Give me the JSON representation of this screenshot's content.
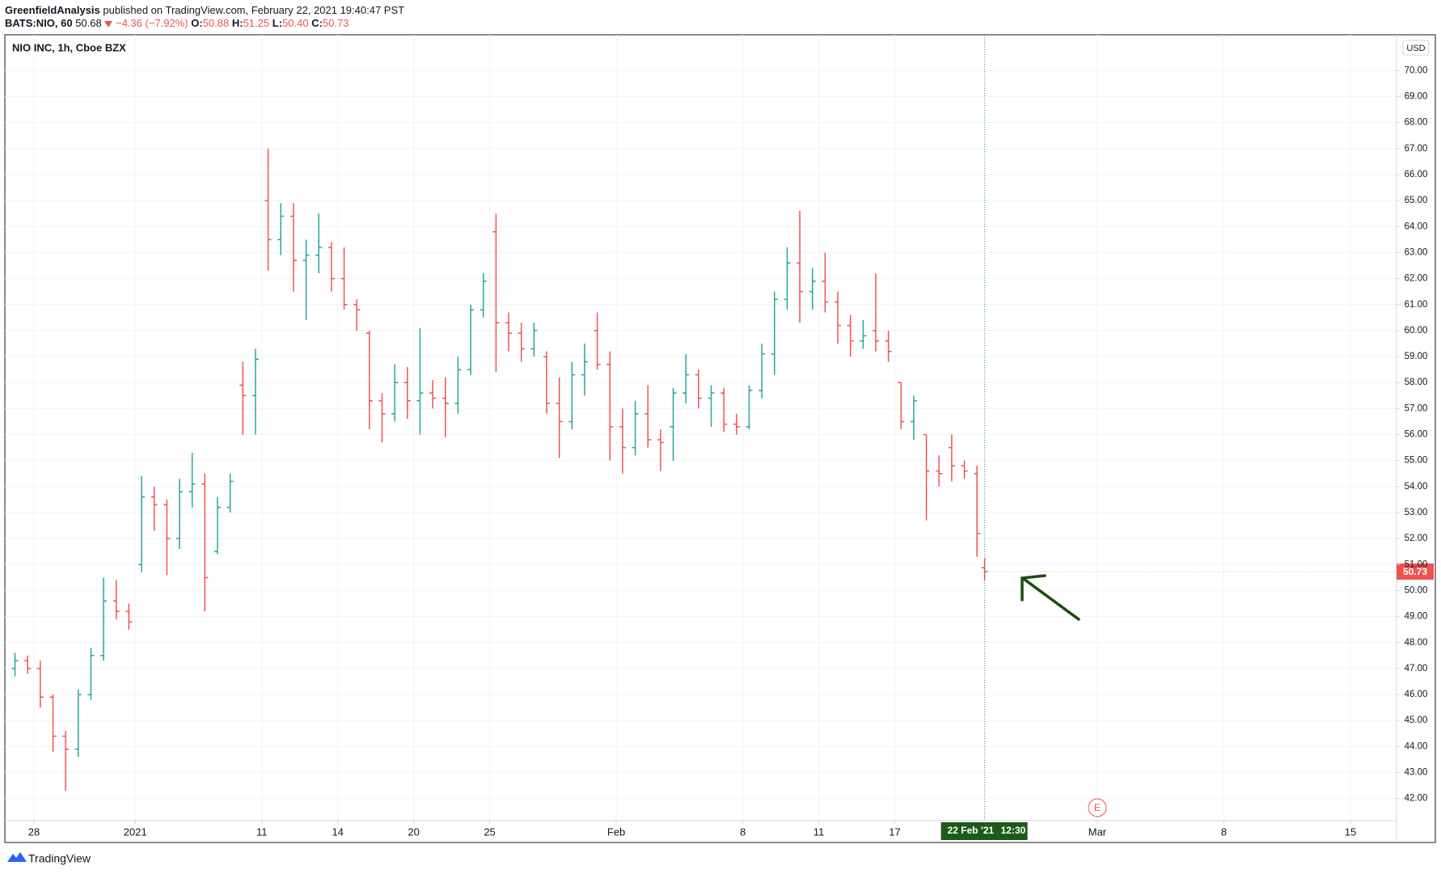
{
  "header": {
    "publisher": "GreenfieldAnalysis",
    "published": "published on TradingView.com, February 22, 2021 19:40:47 PST",
    "symbol": "BATS:NIO, 60",
    "last": "50.68",
    "change": "−4.36 (−7.92%)",
    "ohlc_labels": [
      "O:",
      "H:",
      "L:",
      "C:"
    ],
    "ohlc_values": [
      "50.88",
      "51.25",
      "50.40",
      "50.73"
    ],
    "currency": "USD",
    "crosshair_date": "22 Feb '21",
    "crosshair_time": "12:30",
    "earnings": "E",
    "footer": "TradingView"
  },
  "chart_data": {
    "type": "ohlc",
    "title": "NIO INC, 1h, Cboe BZX",
    "up_color": "#26a69a",
    "down_color": "#ef5350",
    "grid": true,
    "xlim": [
      -1.15,
      53.82
    ],
    "ylim": [
      41.15,
      71.38
    ],
    "xticks": [
      {
        "value": 0,
        "label": "28"
      },
      {
        "value": 4,
        "label": "2021"
      },
      {
        "value": 9,
        "label": "11"
      },
      {
        "value": 12,
        "label": "14"
      },
      {
        "value": 15,
        "label": "20"
      },
      {
        "value": 18,
        "label": "25"
      },
      {
        "value": 23,
        "label": "Feb"
      },
      {
        "value": 28,
        "label": "8"
      },
      {
        "value": 31,
        "label": "11"
      },
      {
        "value": 34,
        "label": "17"
      },
      {
        "value": 42,
        "label": "Mar"
      },
      {
        "value": 47,
        "label": "8"
      },
      {
        "value": 52,
        "label": "15"
      }
    ],
    "yticks": [
      {
        "value": 42,
        "label": "42.00"
      },
      {
        "value": 43,
        "label": "43.00"
      },
      {
        "value": 44,
        "label": "44.00"
      },
      {
        "value": 45,
        "label": "45.00"
      },
      {
        "value": 46,
        "label": "46.00"
      },
      {
        "value": 47,
        "label": "47.00"
      },
      {
        "value": 48,
        "label": "48.00"
      },
      {
        "value": 49,
        "label": "49.00"
      },
      {
        "value": 50,
        "label": "50.00"
      },
      {
        "value": 51,
        "label": "51.00"
      },
      {
        "value": 52,
        "label": "52.00"
      },
      {
        "value": 53,
        "label": "53.00"
      },
      {
        "value": 54,
        "label": "54.00"
      },
      {
        "value": 55,
        "label": "55.00"
      },
      {
        "value": 56,
        "label": "56.00"
      },
      {
        "value": 57,
        "label": "57.00"
      },
      {
        "value": 58,
        "label": "58.00"
      },
      {
        "value": 59,
        "label": "59.00"
      },
      {
        "value": 60,
        "label": "60.00"
      },
      {
        "value": 61,
        "label": "61.00"
      },
      {
        "value": 62,
        "label": "62.00"
      },
      {
        "value": 63,
        "label": "63.00"
      },
      {
        "value": 64,
        "label": "64.00"
      },
      {
        "value": 65,
        "label": "65.00"
      },
      {
        "value": 66,
        "label": "66.00"
      },
      {
        "value": 67,
        "label": "67.00"
      },
      {
        "value": 68,
        "label": "68.00"
      },
      {
        "value": 69,
        "label": "69.00"
      },
      {
        "value": 70,
        "label": "70.00"
      }
    ],
    "x": [
      -0.75,
      -0.25,
      0.25,
      0.75,
      1.25,
      1.75,
      2.25,
      2.75,
      3.25,
      3.75,
      4.25,
      4.75,
      5.25,
      5.75,
      6.25,
      6.75,
      7.25,
      7.75,
      8.25,
      8.75,
      9.25,
      9.75,
      10.25,
      10.75,
      11.25,
      11.75,
      12.25,
      12.75,
      13.25,
      13.75,
      14.25,
      14.75,
      15.25,
      15.75,
      16.25,
      16.75,
      17.25,
      17.75,
      18.25,
      18.75,
      19.25,
      19.75,
      20.25,
      20.75,
      21.25,
      21.75,
      22.25,
      22.75,
      23.25,
      23.75,
      24.25,
      24.75,
      25.25,
      25.75,
      26.25,
      26.75,
      27.25,
      27.75,
      28.25,
      28.75,
      29.25,
      29.75,
      30.25,
      30.75,
      31.25,
      31.75,
      32.25,
      32.75,
      33.25,
      33.75,
      34.25,
      34.75,
      35.25,
      35.75,
      36.25,
      36.75,
      37.25,
      37.55
    ],
    "open": [
      47.0,
      47.3,
      47.0,
      45.9,
      44.4,
      43.9,
      46.0,
      47.5,
      49.6,
      49.2,
      51.0,
      53.6,
      53.3,
      52.0,
      53.8,
      54.1,
      51.5,
      53.2,
      57.9,
      57.5,
      65.0,
      63.5,
      64.4,
      62.7,
      62.9,
      63.2,
      62.0,
      61.0,
      59.9,
      57.3,
      56.8,
      58.0,
      57.3,
      57.6,
      57.4,
      57.2,
      58.5,
      60.8,
      63.8,
      60.3,
      59.9,
      59.3,
      59.0,
      57.2,
      56.5,
      58.3,
      60.0,
      58.7,
      56.3,
      55.5,
      56.8,
      55.8,
      56.3,
      57.6,
      58.3,
      57.4,
      57.6,
      56.4,
      56.3,
      57.7,
      59.1,
      61.2,
      62.6,
      61.5,
      61.9,
      61.1,
      60.2,
      59.6,
      60.0,
      59.6,
      58.0,
      56.5,
      56.0,
      54.6,
      55.5,
      54.8,
      54.5,
      50.88
    ],
    "high": [
      47.6,
      47.5,
      47.3,
      46.0,
      44.6,
      46.2,
      47.8,
      50.5,
      50.4,
      49.5,
      54.4,
      54.0,
      53.5,
      54.3,
      55.3,
      54.5,
      53.6,
      54.5,
      58.8,
      59.3,
      67.0,
      64.9,
      64.9,
      63.5,
      64.5,
      63.4,
      63.2,
      61.2,
      60.0,
      57.6,
      58.7,
      58.6,
      60.1,
      58.1,
      58.2,
      59.0,
      61.0,
      62.2,
      64.5,
      60.7,
      60.3,
      60.3,
      59.2,
      58.2,
      58.8,
      59.5,
      60.7,
      59.2,
      57.0,
      57.3,
      57.9,
      56.2,
      57.8,
      59.1,
      58.5,
      57.9,
      57.8,
      56.8,
      57.9,
      59.5,
      61.5,
      63.2,
      64.6,
      62.4,
      63.0,
      61.5,
      60.6,
      60.4,
      62.2,
      60.0,
      58.0,
      57.5,
      56.0,
      55.2,
      56.0,
      55.0,
      54.8,
      51.25
    ],
    "low": [
      46.7,
      46.8,
      45.5,
      43.8,
      42.3,
      43.6,
      45.8,
      47.3,
      48.9,
      48.5,
      50.7,
      52.3,
      50.6,
      51.6,
      53.2,
      49.2,
      51.4,
      53.0,
      56.0,
      56.0,
      62.3,
      62.9,
      61.5,
      60.4,
      62.2,
      61.5,
      60.8,
      60.0,
      56.2,
      55.7,
      56.5,
      56.6,
      56.0,
      57.0,
      55.9,
      56.8,
      58.3,
      60.5,
      58.4,
      59.2,
      58.8,
      59.0,
      56.8,
      55.1,
      56.2,
      57.5,
      58.5,
      55.0,
      54.5,
      55.2,
      55.5,
      54.6,
      55.0,
      57.2,
      57.0,
      56.3,
      56.1,
      56.0,
      56.2,
      57.4,
      58.3,
      60.8,
      60.3,
      60.8,
      60.7,
      59.5,
      59.0,
      59.3,
      59.2,
      58.8,
      56.2,
      55.8,
      52.7,
      54.0,
      54.2,
      54.3,
      51.3,
      50.4
    ],
    "close": [
      47.3,
      47.0,
      45.9,
      44.4,
      43.9,
      46.0,
      47.5,
      49.6,
      49.2,
      48.8,
      53.6,
      53.3,
      52.0,
      53.8,
      54.1,
      50.5,
      53.2,
      54.2,
      57.5,
      58.9,
      63.5,
      64.4,
      62.7,
      62.9,
      63.2,
      62.0,
      61.0,
      60.8,
      57.3,
      56.8,
      58.0,
      57.3,
      57.6,
      57.4,
      57.2,
      58.5,
      60.8,
      61.9,
      60.3,
      59.9,
      59.3,
      60.0,
      57.2,
      56.5,
      58.3,
      58.8,
      58.7,
      56.3,
      55.5,
      56.8,
      55.8,
      55.7,
      57.6,
      58.3,
      57.4,
      57.6,
      56.4,
      56.3,
      57.7,
      59.1,
      61.2,
      62.6,
      61.5,
      61.9,
      61.1,
      60.2,
      59.6,
      59.8,
      59.6,
      59.2,
      56.5,
      57.3,
      54.6,
      54.5,
      54.8,
      54.6,
      52.2,
      50.73
    ]
  }
}
